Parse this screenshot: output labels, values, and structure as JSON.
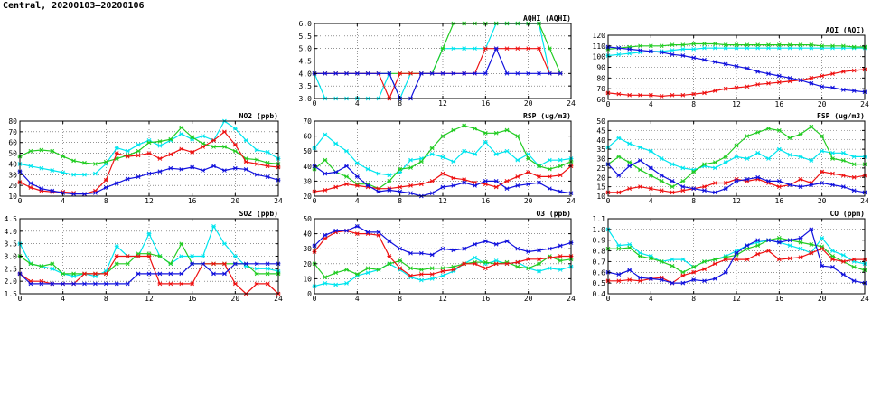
{
  "title": "Central, 20200103–20200106",
  "colors": {
    "cyan": "#00e5ee",
    "green": "#22cc22",
    "red": "#ee1111",
    "blue": "#1111dd",
    "grid": "#555555"
  },
  "chart_data": [
    {
      "type": "line",
      "id": "aqhi",
      "title": "AQHI (AQHI)",
      "xlim": [
        0,
        24
      ],
      "xticks": [
        0,
        4,
        8,
        12,
        16,
        20,
        24
      ],
      "ylim": [
        3.0,
        6.0
      ],
      "yticks": [
        3.0,
        3.5,
        4.0,
        4.5,
        5.0,
        5.5,
        6.0
      ],
      "ydec": 1,
      "series": [
        {
          "color": "cyan",
          "values": [
            4,
            3,
            3,
            3,
            3,
            3,
            3,
            4,
            3,
            4,
            4,
            4,
            5,
            5,
            5,
            5,
            5,
            6,
            6,
            6,
            6,
            6,
            4,
            4
          ]
        },
        {
          "color": "green",
          "values": [
            4,
            4,
            4,
            4,
            4,
            4,
            4,
            4,
            4,
            4,
            4,
            4,
            5,
            6,
            6,
            6,
            6,
            6,
            6,
            6,
            6,
            6,
            5,
            4
          ]
        },
        {
          "color": "red",
          "values": [
            4,
            4,
            4,
            4,
            4,
            4,
            4,
            3,
            4,
            4,
            4,
            4,
            4,
            4,
            4,
            4,
            5,
            5,
            5,
            5,
            5,
            5,
            4,
            4
          ]
        },
        {
          "color": "blue",
          "values": [
            4,
            4,
            4,
            4,
            4,
            4,
            4,
            4,
            3,
            3,
            4,
            4,
            4,
            4,
            4,
            4,
            4,
            5,
            4,
            4,
            4,
            4,
            4,
            4
          ]
        }
      ]
    },
    {
      "type": "line",
      "id": "aqi",
      "title": "AQI (AQI)",
      "xlim": [
        0,
        24
      ],
      "xticks": [
        0,
        4,
        8,
        12,
        16,
        20,
        24
      ],
      "ylim": [
        60,
        120
      ],
      "yticks": [
        60,
        70,
        80,
        90,
        100,
        110,
        120
      ],
      "ydec": 0,
      "series": [
        {
          "color": "cyan",
          "values": [
            101,
            102,
            103,
            104,
            105,
            105,
            106,
            107,
            107,
            108,
            108,
            108,
            108,
            108,
            108,
            108,
            108,
            108,
            108,
            108,
            108,
            108,
            108,
            108,
            108
          ]
        },
        {
          "color": "green",
          "values": [
            107,
            108,
            109,
            110,
            110,
            110,
            111,
            111,
            112,
            112,
            112,
            111,
            111,
            111,
            111,
            111,
            111,
            111,
            111,
            111,
            110,
            110,
            110,
            109,
            109
          ]
        },
        {
          "color": "red",
          "values": [
            66,
            65,
            64,
            64,
            64,
            63,
            64,
            64,
            65,
            66,
            68,
            70,
            71,
            72,
            74,
            75,
            76,
            77,
            78,
            80,
            82,
            84,
            86,
            87,
            88
          ]
        },
        {
          "color": "blue",
          "values": [
            109,
            108,
            107,
            106,
            105,
            104,
            102,
            101,
            99,
            97,
            95,
            93,
            91,
            89,
            86,
            84,
            82,
            80,
            78,
            75,
            72,
            71,
            69,
            68,
            67
          ]
        }
      ]
    },
    {
      "type": "line",
      "id": "no2",
      "title": "NO2 (ppb)",
      "xlim": [
        0,
        24
      ],
      "xticks": [
        0,
        4,
        8,
        12,
        16,
        20,
        24
      ],
      "ylim": [
        10,
        80
      ],
      "yticks": [
        10,
        20,
        30,
        40,
        50,
        60,
        70,
        80
      ],
      "ydec": 0,
      "series": [
        {
          "color": "cyan",
          "values": [
            40,
            38,
            36,
            34,
            32,
            30,
            30,
            31,
            40,
            55,
            52,
            58,
            62,
            57,
            62,
            68,
            63,
            66,
            62,
            80,
            73,
            62,
            53,
            51,
            45
          ]
        },
        {
          "color": "green",
          "values": [
            47,
            52,
            53,
            52,
            47,
            43,
            41,
            40,
            42,
            45,
            48,
            52,
            60,
            61,
            63,
            74,
            65,
            59,
            56,
            56,
            52,
            45,
            44,
            41,
            40
          ]
        },
        {
          "color": "red",
          "values": [
            23,
            18,
            15,
            14,
            14,
            13,
            12,
            15,
            25,
            50,
            47,
            48,
            50,
            45,
            49,
            54,
            51,
            56,
            62,
            70,
            58,
            42,
            40,
            38,
            37
          ]
        },
        {
          "color": "blue",
          "values": [
            33,
            22,
            17,
            15,
            13,
            12,
            12,
            13,
            18,
            22,
            26,
            28,
            31,
            33,
            36,
            35,
            37,
            34,
            38,
            34,
            36,
            35,
            30,
            28,
            25
          ]
        }
      ]
    },
    {
      "type": "line",
      "id": "rsp",
      "title": "RSP (ug/m3)",
      "xlim": [
        0,
        24
      ],
      "xticks": [
        0,
        4,
        8,
        12,
        16,
        20,
        24
      ],
      "ylim": [
        20,
        70
      ],
      "yticks": [
        20,
        30,
        40,
        50,
        60,
        70
      ],
      "ydec": 0,
      "series": [
        {
          "color": "cyan",
          "values": [
            52,
            61,
            55,
            50,
            42,
            38,
            35,
            34,
            36,
            44,
            45,
            48,
            46,
            43,
            50,
            48,
            56,
            48,
            50,
            44,
            48,
            40,
            44,
            44,
            45
          ]
        },
        {
          "color": "green",
          "values": [
            38,
            44,
            36,
            33,
            28,
            28,
            25,
            30,
            38,
            39,
            43,
            52,
            60,
            64,
            67,
            65,
            62,
            62,
            64,
            60,
            45,
            40,
            38,
            40,
            43
          ]
        },
        {
          "color": "red",
          "values": [
            23,
            24,
            26,
            28,
            27,
            26,
            25,
            25,
            26,
            27,
            28,
            30,
            35,
            32,
            31,
            29,
            28,
            26,
            30,
            33,
            36,
            33,
            33,
            34,
            40
          ]
        },
        {
          "color": "blue",
          "values": [
            40,
            35,
            36,
            40,
            33,
            27,
            23,
            24,
            23,
            22,
            20,
            22,
            26,
            27,
            29,
            27,
            30,
            30,
            25,
            27,
            28,
            29,
            25,
            23,
            22
          ]
        }
      ]
    },
    {
      "type": "line",
      "id": "fsp",
      "title": "FSP (ug/m3)",
      "xlim": [
        0,
        24
      ],
      "xticks": [
        0,
        4,
        8,
        12,
        16,
        20,
        24
      ],
      "ylim": [
        10,
        50
      ],
      "yticks": [
        10,
        15,
        20,
        25,
        30,
        35,
        40,
        45,
        50
      ],
      "ydec": 0,
      "series": [
        {
          "color": "cyan",
          "values": [
            36,
            41,
            38,
            36,
            34,
            30,
            27,
            25,
            24,
            26,
            25,
            28,
            31,
            30,
            33,
            30,
            35,
            32,
            31,
            29,
            34,
            33,
            33,
            31,
            31
          ]
        },
        {
          "color": "green",
          "values": [
            27,
            31,
            28,
            24,
            21,
            18,
            15,
            18,
            23,
            27,
            28,
            31,
            37,
            42,
            44,
            46,
            45,
            41,
            43,
            47,
            42,
            30,
            29,
            27,
            27
          ]
        },
        {
          "color": "red",
          "values": [
            12,
            12,
            14,
            15,
            14,
            13,
            12,
            13,
            14,
            15,
            17,
            17,
            19,
            18,
            19,
            17,
            15,
            16,
            19,
            17,
            23,
            22,
            21,
            20,
            21
          ]
        },
        {
          "color": "blue",
          "values": [
            27,
            21,
            26,
            29,
            25,
            21,
            18,
            15,
            14,
            13,
            12,
            14,
            18,
            19,
            20,
            18,
            18,
            16,
            15,
            16,
            17,
            16,
            15,
            13,
            12
          ]
        }
      ]
    },
    {
      "type": "line",
      "id": "so2",
      "title": "SO2 (ppb)",
      "xlim": [
        0,
        24
      ],
      "xticks": [
        0,
        4,
        8,
        12,
        16,
        20,
        24
      ],
      "ylim": [
        1.5,
        4.5
      ],
      "yticks": [
        1.5,
        2.0,
        2.5,
        3.0,
        3.5,
        4.0,
        4.5
      ],
      "ydec": 1,
      "series": [
        {
          "color": "cyan",
          "values": [
            3.5,
            2.7,
            2.6,
            2.5,
            2.3,
            2.2,
            2.3,
            2.2,
            2.4,
            3.4,
            3.0,
            3.0,
            3.9,
            3.0,
            2.7,
            3.0,
            3.0,
            3.0,
            4.2,
            3.5,
            3.0,
            2.6,
            2.5,
            2.5,
            2.4
          ]
        },
        {
          "color": "green",
          "values": [
            3.0,
            2.7,
            2.6,
            2.7,
            2.3,
            2.3,
            2.3,
            2.3,
            2.3,
            2.7,
            2.7,
            3.1,
            3.1,
            3.0,
            2.7,
            3.5,
            2.7,
            2.7,
            2.7,
            2.7,
            2.7,
            2.7,
            2.3,
            2.3,
            2.3
          ]
        },
        {
          "color": "red",
          "values": [
            2.3,
            2.0,
            2.0,
            1.9,
            1.9,
            1.9,
            2.3,
            2.3,
            2.3,
            3.0,
            3.0,
            3.0,
            3.0,
            1.9,
            1.9,
            1.9,
            1.9,
            2.7,
            2.7,
            2.7,
            1.9,
            1.5,
            1.9,
            1.9,
            1.5
          ]
        },
        {
          "color": "blue",
          "values": [
            2.3,
            1.9,
            1.9,
            1.9,
            1.9,
            1.9,
            1.9,
            1.9,
            1.9,
            1.9,
            1.9,
            2.3,
            2.3,
            2.3,
            2.3,
            2.3,
            2.7,
            2.7,
            2.3,
            2.3,
            2.7,
            2.7,
            2.7,
            2.7,
            2.7
          ]
        }
      ]
    },
    {
      "type": "line",
      "id": "o3",
      "title": "O3 (ppb)",
      "xlim": [
        0,
        24
      ],
      "xticks": [
        0,
        4,
        8,
        12,
        16,
        20,
        24
      ],
      "ylim": [
        0,
        50
      ],
      "yticks": [
        0,
        10,
        20,
        30,
        40,
        50
      ],
      "ydec": 0,
      "series": [
        {
          "color": "cyan",
          "values": [
            5,
            7,
            6,
            7,
            12,
            14,
            16,
            20,
            16,
            11,
            9,
            10,
            12,
            15,
            20,
            24,
            20,
            22,
            20,
            21,
            17,
            15,
            17,
            16,
            18
          ]
        },
        {
          "color": "green",
          "values": [
            20,
            11,
            14,
            16,
            13,
            17,
            16,
            20,
            22,
            17,
            16,
            17,
            17,
            18,
            20,
            21,
            21,
            20,
            21,
            18,
            17,
            20,
            25,
            22,
            23
          ]
        },
        {
          "color": "red",
          "values": [
            28,
            37,
            41,
            42,
            40,
            40,
            39,
            25,
            17,
            12,
            13,
            13,
            15,
            16,
            20,
            20,
            17,
            20,
            20,
            21,
            23,
            23,
            24,
            25,
            25
          ]
        },
        {
          "color": "blue",
          "values": [
            32,
            39,
            42,
            42,
            45,
            41,
            41,
            35,
            30,
            27,
            27,
            26,
            30,
            29,
            30,
            33,
            35,
            33,
            35,
            30,
            28,
            29,
            30,
            32,
            34
          ]
        }
      ]
    },
    {
      "type": "line",
      "id": "co",
      "title": "CO (ppm)",
      "xlim": [
        0,
        24
      ],
      "xticks": [
        0,
        4,
        8,
        12,
        16,
        20,
        24
      ],
      "ylim": [
        0.4,
        1.1
      ],
      "yticks": [
        0.4,
        0.5,
        0.6,
        0.7,
        0.8,
        0.9,
        1.0,
        1.1
      ],
      "ydec": 1,
      "series": [
        {
          "color": "cyan",
          "values": [
            1.0,
            0.85,
            0.86,
            0.78,
            0.75,
            0.7,
            0.72,
            0.72,
            0.65,
            0.7,
            0.72,
            0.75,
            0.8,
            0.85,
            0.88,
            0.9,
            0.88,
            0.85,
            0.82,
            0.78,
            0.92,
            0.8,
            0.76,
            0.7,
            0.68
          ]
        },
        {
          "color": "green",
          "values": [
            0.82,
            0.82,
            0.83,
            0.75,
            0.73,
            0.7,
            0.66,
            0.6,
            0.65,
            0.7,
            0.72,
            0.74,
            0.76,
            0.82,
            0.85,
            0.9,
            0.92,
            0.9,
            0.88,
            0.86,
            0.84,
            0.75,
            0.7,
            0.65,
            0.62
          ]
        },
        {
          "color": "red",
          "values": [
            0.52,
            0.52,
            0.53,
            0.52,
            0.54,
            0.55,
            0.5,
            0.57,
            0.6,
            0.63,
            0.68,
            0.72,
            0.72,
            0.72,
            0.77,
            0.8,
            0.72,
            0.73,
            0.74,
            0.78,
            0.82,
            0.72,
            0.7,
            0.72,
            0.72
          ]
        },
        {
          "color": "blue",
          "values": [
            0.6,
            0.58,
            0.62,
            0.55,
            0.54,
            0.53,
            0.5,
            0.5,
            0.53,
            0.52,
            0.54,
            0.6,
            0.78,
            0.85,
            0.9,
            0.9,
            0.88,
            0.9,
            0.92,
            1.0,
            0.66,
            0.65,
            0.58,
            0.52,
            0.5
          ]
        }
      ]
    }
  ]
}
